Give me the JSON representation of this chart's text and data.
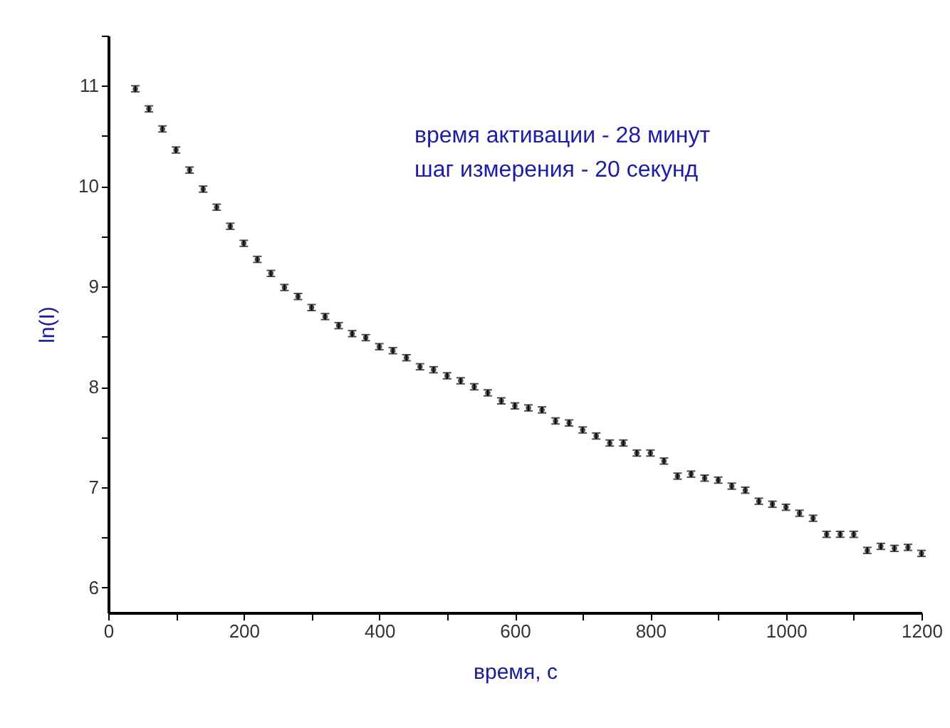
{
  "chart_data": {
    "type": "scatter",
    "xlabel": "время, с",
    "ylabel": "ln(I)",
    "annotations": [
      "время активации - 28 минут",
      "шаг измерения   - 20 секунд"
    ],
    "x": [
      40,
      60,
      80,
      100,
      120,
      140,
      160,
      180,
      200,
      220,
      240,
      260,
      280,
      300,
      320,
      340,
      360,
      380,
      400,
      420,
      440,
      460,
      480,
      500,
      520,
      540,
      560,
      580,
      600,
      620,
      640,
      660,
      680,
      700,
      720,
      740,
      760,
      780,
      800,
      820,
      840,
      860,
      880,
      900,
      920,
      940,
      960,
      980,
      1000,
      1020,
      1040,
      1060,
      1080,
      1100,
      1120,
      1140,
      1160,
      1180,
      1200
    ],
    "series": [
      {
        "color": "#000000",
        "values": [
          10.97,
          10.77,
          10.57,
          10.36,
          10.16,
          9.97,
          9.79,
          9.6,
          9.43,
          9.27,
          9.13,
          8.99,
          8.9,
          8.79,
          8.7,
          8.61,
          8.53,
          8.49,
          8.4,
          8.36,
          8.29,
          8.2,
          8.17,
          8.11,
          8.06,
          8.0,
          7.94,
          7.86,
          7.81,
          7.79,
          7.77,
          7.66,
          7.64,
          7.57,
          7.51,
          7.44,
          7.44,
          7.34,
          7.34,
          7.26,
          7.11,
          7.13,
          7.09,
          7.07,
          7.01,
          6.97,
          6.86,
          6.83,
          6.8,
          6.74,
          6.69,
          6.53,
          6.53,
          6.53,
          6.37,
          6.41,
          6.39,
          6.4,
          6.34
        ],
        "errors": [
          0.03,
          0.03,
          0.03,
          0.03,
          0.03,
          0.03,
          0.03,
          0.03,
          0.03,
          0.03,
          0.03,
          0.03,
          0.03,
          0.03,
          0.03,
          0.03,
          0.03,
          0.03,
          0.03,
          0.03,
          0.03,
          0.03,
          0.03,
          0.03,
          0.03,
          0.03,
          0.03,
          0.03,
          0.03,
          0.03,
          0.03,
          0.03,
          0.03,
          0.03,
          0.03,
          0.03,
          0.03,
          0.03,
          0.03,
          0.03,
          0.03,
          0.03,
          0.03,
          0.03,
          0.03,
          0.03,
          0.03,
          0.03,
          0.03,
          0.03,
          0.03,
          0.03,
          0.03,
          0.03,
          0.03,
          0.03,
          0.03,
          0.03,
          0.03
        ]
      }
    ],
    "xlim": [
      0,
      1200
    ],
    "ylim": [
      5.75,
      11.5
    ],
    "xticks": [
      0,
      {
        "value": 100,
        "label": null
      },
      200,
      {
        "value": 300,
        "label": null
      },
      400,
      {
        "value": 500,
        "label": null
      },
      600,
      {
        "value": 700,
        "label": null
      },
      800,
      {
        "value": 900,
        "label": null
      },
      1000,
      {
        "value": 1100,
        "label": null
      },
      1200
    ],
    "yticks": [
      6,
      {
        "value": 6.5,
        "label": null
      },
      7,
      {
        "value": 7.5,
        "label": null
      },
      8,
      {
        "value": 8.5,
        "label": null
      },
      9,
      {
        "value": 9.5,
        "label": null
      },
      10,
      {
        "value": 10.5,
        "label": null
      },
      11,
      {
        "value": 11.5,
        "label": null
      }
    ],
    "grid": false,
    "marker": "circle"
  }
}
